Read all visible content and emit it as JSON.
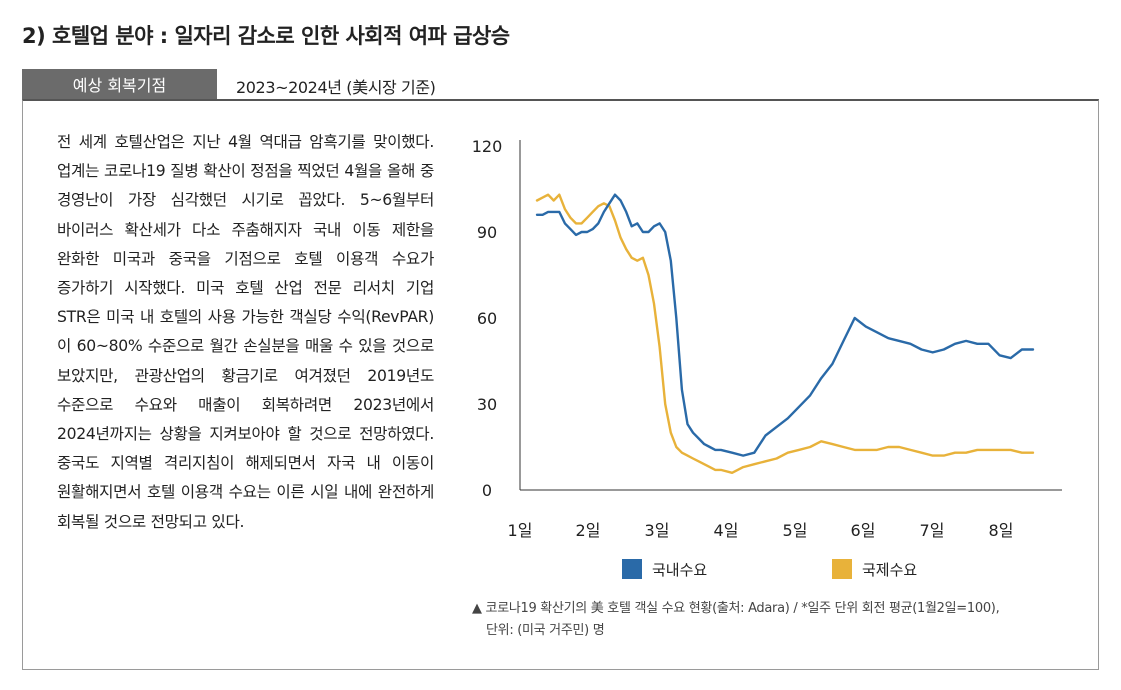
{
  "heading": "2) 호텔업 분야 : 일자리 감소로 인한 사회적 여파 급상승",
  "label": "예상 회복기점",
  "label_value": "2023~2024년 (美시장 기준)",
  "body_text": "전 세계 호텔산업은 지난 4월 역대급 암흑기를 맞이했다. 업계는 코로나19 질병 확산이 정점을 찍었던 4월을 올해 중 경영난이 가장 심각했던 시기로 꼽았다. 5~6월부터 바이러스 확산세가 다소 주춤해지자 국내 이동 제한을 완화한 미국과 중국을 기점으로 호텔 이용객 수요가 증가하기 시작했다. 미국 호텔 산업 전문 리서치 기업 STR은 미국 내 호텔의 사용 가능한 객실당 수익(RevPAR)이 60~80% 수준으로 월간 손실분을 매울 수 있을 것으로 보았지만, 관광산업의 황금기로 여겨졌던 2019년도 수준으로 수요와 매출이 회복하려면 2023년에서 2024년까지는 상황을 지켜보아야 할 것으로 전망하였다. 중국도 지역별 격리지침이 해제되면서 자국 내 이동이 원활해지면서 호텔 이용객 수요는 이른 시일 내에 완전하게 회복될 것으로 전망되고 있다.",
  "caption_line1": "▲ 코로나19 확산기의 美 호텔 객실 수요 현황(출처: Adara) / *일주 단위 회전 평균(1월2일=100),",
  "caption_line2": "단위: (미국 거주민) 명",
  "chart_data": {
    "type": "line",
    "title": "",
    "xlabel": "",
    "ylabel": "",
    "ylim": [
      0,
      120
    ],
    "yticks": [
      "0",
      "30",
      "60",
      "90",
      "120"
    ],
    "x_categories": [
      "1일",
      "2일",
      "3일",
      "4일",
      "5일",
      "6일",
      "7일",
      "8일"
    ],
    "grid": false,
    "legend_position": "bottom",
    "colors": {
      "국내수요": "#2a6aa8",
      "국제수요": "#e8b23a"
    },
    "series": [
      {
        "name": "국내수요",
        "x": [
          0.0,
          0.1,
          0.2,
          0.3,
          0.4,
          0.5,
          0.6,
          0.7,
          0.8,
          0.9,
          1.0,
          1.1,
          1.2,
          1.3,
          1.4,
          1.5,
          1.6,
          1.7,
          1.8,
          1.9,
          2.0,
          2.1,
          2.2,
          2.3,
          2.4,
          2.5,
          2.6,
          2.7,
          2.8,
          2.9,
          3.0,
          3.1,
          3.2,
          3.3,
          3.5,
          3.7,
          3.9,
          4.1,
          4.3,
          4.5,
          4.7,
          4.9,
          5.1,
          5.3,
          5.5,
          5.7,
          5.9,
          6.1,
          6.3,
          6.5,
          6.7,
          6.9,
          7.1,
          7.3,
          7.5,
          7.7,
          7.9,
          8.1,
          8.3,
          8.5,
          8.7,
          8.9
        ],
        "y": [
          96,
          96,
          97,
          97,
          97,
          93,
          91,
          89,
          90,
          90,
          91,
          93,
          97,
          100,
          103,
          101,
          97,
          92,
          93,
          90,
          90,
          92,
          93,
          90,
          80,
          60,
          35,
          23,
          20,
          18,
          16,
          15,
          14,
          14,
          13,
          12,
          13,
          19,
          22,
          25,
          29,
          33,
          39,
          44,
          52,
          60,
          57,
          55,
          53,
          52,
          51,
          49,
          48,
          49,
          51,
          52,
          51,
          51,
          47,
          46,
          49,
          49
        ]
      },
      {
        "name": "국제수요",
        "x": [
          0.0,
          0.1,
          0.2,
          0.3,
          0.4,
          0.5,
          0.6,
          0.7,
          0.8,
          0.9,
          1.0,
          1.1,
          1.2,
          1.3,
          1.4,
          1.5,
          1.6,
          1.7,
          1.8,
          1.9,
          2.0,
          2.1,
          2.2,
          2.3,
          2.4,
          2.5,
          2.6,
          2.7,
          2.8,
          2.9,
          3.0,
          3.1,
          3.2,
          3.3,
          3.5,
          3.7,
          3.9,
          4.1,
          4.3,
          4.5,
          4.7,
          4.9,
          5.1,
          5.3,
          5.5,
          5.7,
          5.9,
          6.1,
          6.3,
          6.5,
          6.7,
          6.9,
          7.1,
          7.3,
          7.5,
          7.7,
          7.9,
          8.1,
          8.3,
          8.5,
          8.7,
          8.9
        ],
        "y": [
          101,
          102,
          103,
          101,
          103,
          98,
          95,
          93,
          93,
          95,
          97,
          99,
          100,
          99,
          94,
          88,
          84,
          81,
          80,
          81,
          75,
          65,
          50,
          30,
          20,
          15,
          13,
          12,
          11,
          10,
          9,
          8,
          7,
          7,
          6,
          8,
          9,
          10,
          11,
          13,
          14,
          15,
          17,
          16,
          15,
          14,
          14,
          14,
          15,
          15,
          14,
          13,
          12,
          12,
          13,
          13,
          14,
          14,
          14,
          14,
          13,
          13
        ]
      }
    ]
  }
}
